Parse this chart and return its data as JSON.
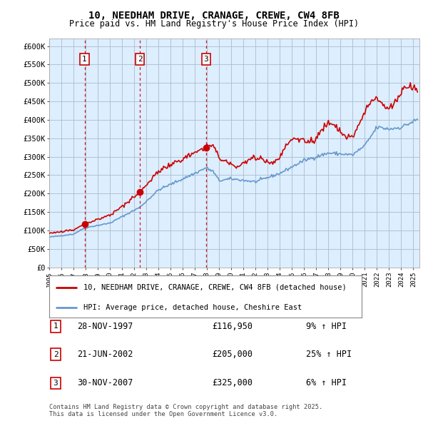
{
  "title": "10, NEEDHAM DRIVE, CRANAGE, CREWE, CW4 8FB",
  "subtitle": "Price paid vs. HM Land Registry's House Price Index (HPI)",
  "xlim": [
    1995.0,
    2025.5
  ],
  "ylim": [
    0,
    620000
  ],
  "yticks": [
    0,
    50000,
    100000,
    150000,
    200000,
    250000,
    300000,
    350000,
    400000,
    450000,
    500000,
    550000,
    600000
  ],
  "ytick_labels": [
    "£0",
    "£50K",
    "£100K",
    "£150K",
    "£200K",
    "£250K",
    "£300K",
    "£350K",
    "£400K",
    "£450K",
    "£500K",
    "£550K",
    "£600K"
  ],
  "sale_dates": [
    1997.91,
    2002.47,
    2007.92
  ],
  "sale_prices": [
    116950,
    205000,
    325000
  ],
  "sale_labels": [
    "1",
    "2",
    "3"
  ],
  "hpi_line_color": "#6699cc",
  "price_line_color": "#cc0000",
  "sale_dot_color": "#cc0000",
  "vline_color": "#cc0000",
  "chart_bg_color": "#ddeeff",
  "grid_color": "#aabbcc",
  "background_color": "#ffffff",
  "legend_entries": [
    "10, NEEDHAM DRIVE, CRANAGE, CREWE, CW4 8FB (detached house)",
    "HPI: Average price, detached house, Cheshire East"
  ],
  "table_rows": [
    {
      "label": "1",
      "date": "28-NOV-1997",
      "price": "£116,950",
      "hpi": "9% ↑ HPI"
    },
    {
      "label": "2",
      "date": "21-JUN-2002",
      "price": "£205,000",
      "hpi": "25% ↑ HPI"
    },
    {
      "label": "3",
      "date": "30-NOV-2007",
      "price": "£325,000",
      "hpi": "6% ↑ HPI"
    }
  ],
  "footer": "Contains HM Land Registry data © Crown copyright and database right 2025.\nThis data is licensed under the Open Government Licence v3.0."
}
